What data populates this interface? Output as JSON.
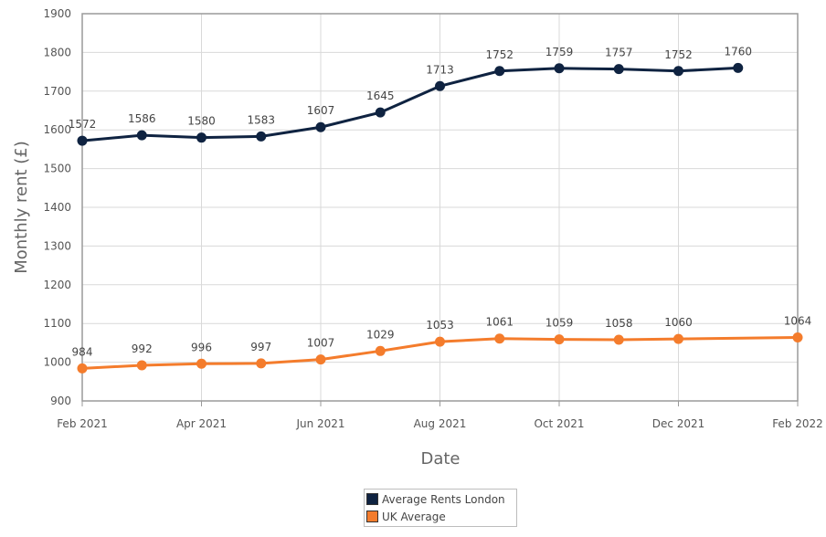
{
  "chart_data": {
    "type": "line",
    "title": "",
    "xlabel": "Date",
    "ylabel": "Monthly rent (£)",
    "ylim": [
      900,
      1900
    ],
    "yticks": [
      "900",
      "1000",
      "1100",
      "1200",
      "1300",
      "1400",
      "1500",
      "1600",
      "1700",
      "1800",
      "1900"
    ],
    "xticks": [
      "Feb 2021",
      "Apr 2021",
      "Jun 2021",
      "Aug 2021",
      "Oct 2021",
      "Dec 2021",
      "Feb 2022"
    ],
    "x": [
      "Feb 2021",
      "Mar 2021",
      "Apr 2021",
      "May 2021",
      "Jun 2021",
      "Jul 2021",
      "Aug 2021",
      "Sep 2021",
      "Oct 2021",
      "Nov 2021",
      "Dec 2021",
      "Jan 2022",
      "Feb 2022"
    ],
    "grid": true,
    "legend_position": "bottom",
    "series": [
      {
        "name": "Average Rents London",
        "color": "#0f2341",
        "values": [
          1572,
          1586,
          1580,
          1583,
          1607,
          1645,
          1713,
          1752,
          1759,
          1757,
          1752,
          1760,
          null
        ]
      },
      {
        "name": "UK Average",
        "color": "#f47c2c",
        "values": [
          984,
          992,
          996,
          997,
          1007,
          1029,
          1053,
          1061,
          1059,
          1058,
          1060,
          null,
          1064
        ]
      }
    ]
  }
}
